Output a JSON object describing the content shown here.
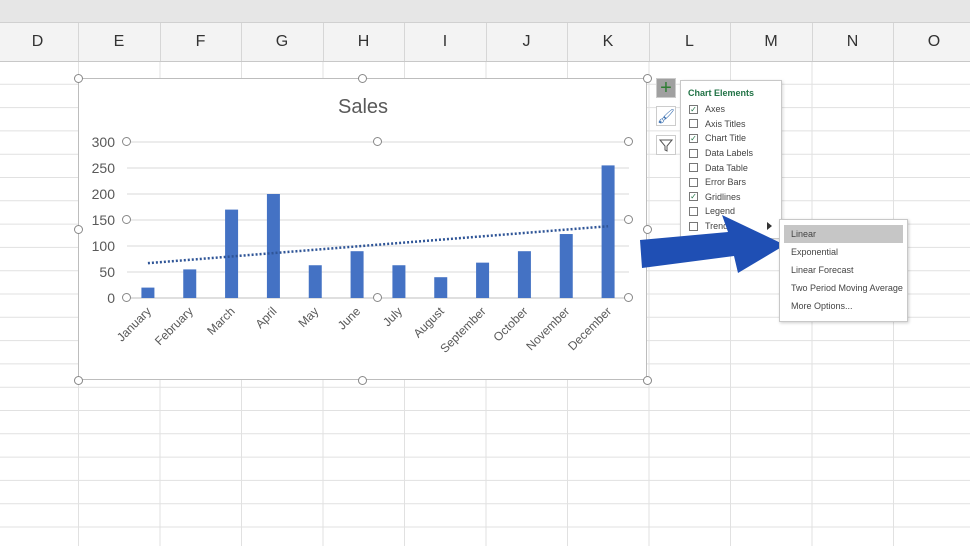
{
  "columns": [
    "D",
    "E",
    "F",
    "G",
    "H",
    "I",
    "J",
    "K",
    "L",
    "M",
    "N",
    "O"
  ],
  "chart_data": {
    "type": "bar",
    "title": "Sales",
    "categories": [
      "January",
      "February",
      "March",
      "April",
      "May",
      "June",
      "July",
      "August",
      "September",
      "October",
      "November",
      "December"
    ],
    "values": [
      20,
      55,
      170,
      200,
      63,
      90,
      63,
      40,
      68,
      90,
      123,
      255
    ],
    "ylim": [
      0,
      300
    ],
    "yticks": [
      0,
      50,
      100,
      150,
      200,
      250,
      300
    ],
    "grid": true,
    "bar_color": "#4472c4",
    "trendline": {
      "type": "linear",
      "start": 67,
      "end": 138,
      "style": "dotted",
      "color": "#2f5597"
    }
  },
  "side_buttons": [
    {
      "icon": "plus-icon"
    },
    {
      "icon": "brush-icon"
    },
    {
      "icon": "filter-icon"
    }
  ],
  "chart_elements": {
    "title": "Chart Elements",
    "items": [
      {
        "label": "Axes",
        "checked": true
      },
      {
        "label": "Axis Titles",
        "checked": false
      },
      {
        "label": "Chart Title",
        "checked": true
      },
      {
        "label": "Data Labels",
        "checked": false
      },
      {
        "label": "Data Table",
        "checked": false
      },
      {
        "label": "Error Bars",
        "checked": false
      },
      {
        "label": "Gridlines",
        "checked": true
      },
      {
        "label": "Legend",
        "checked": false
      },
      {
        "label": "Trendline",
        "checked": false
      }
    ]
  },
  "trendline_menu": {
    "options": [
      "Linear",
      "Exponential",
      "Linear Forecast",
      "Two Period Moving Average",
      "More Options..."
    ],
    "selected": "Linear"
  },
  "arrow_color": "#1f4fb4"
}
